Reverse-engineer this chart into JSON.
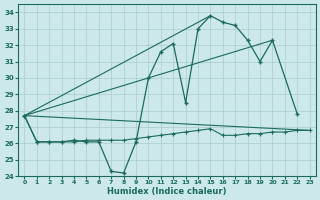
{
  "xlabel": "Humidex (Indice chaleur)",
  "bg_color": "#cce8e8",
  "grid_color": "#aacccc",
  "line_color": "#1a6b5a",
  "xlim": [
    -0.5,
    23.5
  ],
  "ylim": [
    24,
    34.5
  ],
  "yticks": [
    24,
    25,
    26,
    27,
    28,
    29,
    30,
    31,
    32,
    33,
    34
  ],
  "xticks": [
    0,
    1,
    2,
    3,
    4,
    5,
    6,
    7,
    8,
    9,
    10,
    11,
    12,
    13,
    14,
    15,
    16,
    17,
    18,
    19,
    20,
    21,
    22,
    23
  ],
  "series1_x": [
    0,
    1,
    2,
    3,
    4,
    5,
    6,
    7,
    8,
    9,
    10,
    11,
    12,
    13,
    14,
    15,
    16,
    17,
    18,
    19,
    20,
    22
  ],
  "series1_y": [
    27.7,
    26.1,
    26.1,
    26.1,
    26.2,
    26.1,
    26.1,
    24.3,
    24.2,
    26.1,
    30.0,
    31.6,
    32.1,
    28.5,
    33.0,
    33.8,
    33.4,
    33.2,
    32.3,
    31.0,
    32.3,
    27.8
  ],
  "series2_x": [
    0,
    1,
    2,
    3,
    4,
    5,
    6,
    7,
    8,
    9,
    10,
    11,
    12,
    13,
    14,
    15,
    16,
    17,
    18,
    19,
    20,
    21,
    22,
    23
  ],
  "series2_y": [
    27.7,
    26.1,
    26.1,
    26.1,
    26.1,
    26.2,
    26.2,
    26.2,
    26.2,
    26.3,
    26.4,
    26.5,
    26.6,
    26.7,
    26.8,
    26.9,
    26.5,
    26.5,
    26.6,
    26.6,
    26.7,
    26.7,
    26.8,
    26.8
  ],
  "series3_x": [
    0,
    23
  ],
  "series3_y": [
    27.7,
    26.8
  ],
  "series4_x": [
    0,
    15
  ],
  "series4_y": [
    27.7,
    33.8
  ],
  "series5_x": [
    0,
    20
  ],
  "series5_y": [
    27.7,
    32.3
  ]
}
